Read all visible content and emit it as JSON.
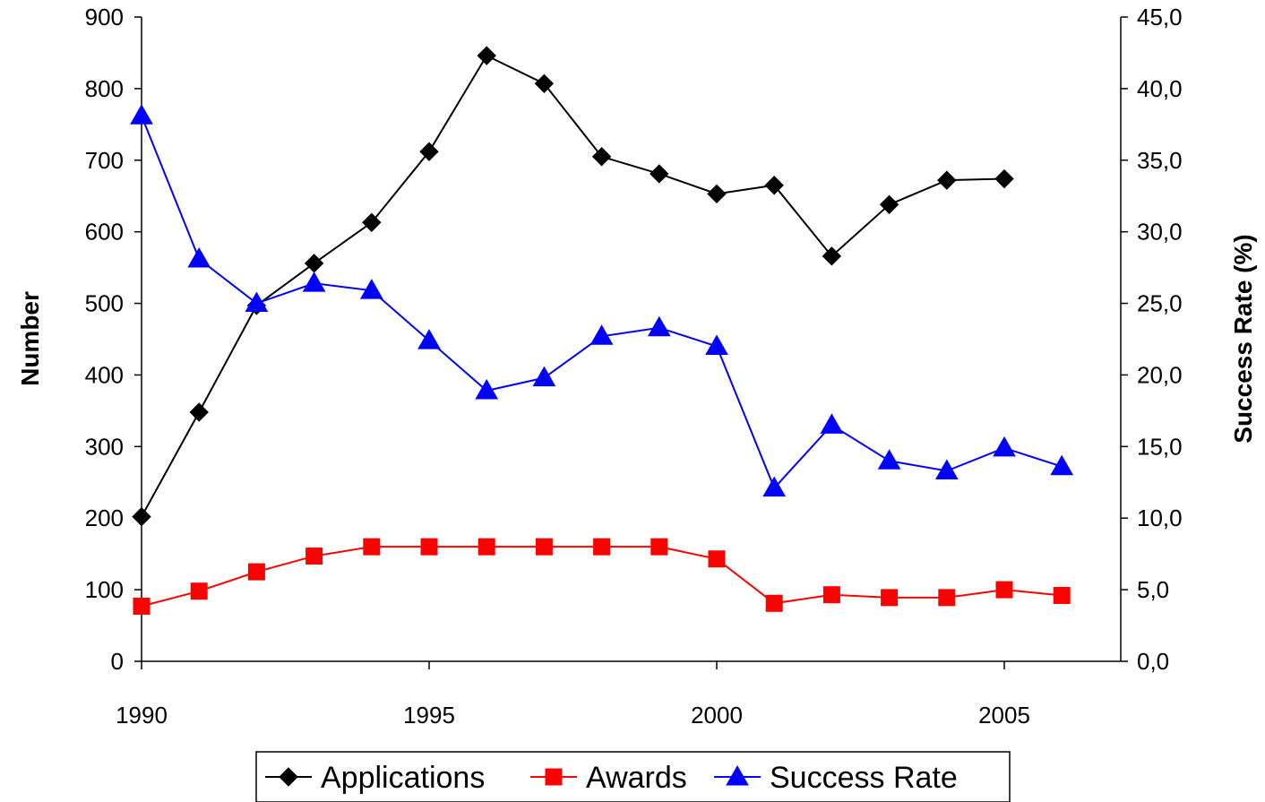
{
  "chart_data": {
    "type": "line",
    "x": [
      1990,
      1991,
      1992,
      1993,
      1994,
      1995,
      1996,
      1997,
      1998,
      1999,
      2000,
      2001,
      2002,
      2003,
      2004,
      2005,
      2006
    ],
    "x_ticks": [
      "1990",
      "1995",
      "2000",
      "2005"
    ],
    "xlim": [
      1990,
      2007
    ],
    "ylabel": "Number",
    "ylim": [
      0,
      900
    ],
    "y_ticks": [
      "0",
      "100",
      "200",
      "300",
      "400",
      "500",
      "600",
      "700",
      "800",
      "900"
    ],
    "y2label": "Success Rate (%)",
    "y2lim": [
      0,
      45
    ],
    "y2_ticks": [
      "0,0",
      "5,0",
      "10,0",
      "15,0",
      "20,0",
      "25,0",
      "30,0",
      "35,0",
      "40,0",
      "45,0"
    ],
    "grid": false,
    "legend_position": "bottom",
    "series": [
      {
        "name": "Applications",
        "axis": "left",
        "color": "#000000",
        "marker": "diamond",
        "values": [
          202,
          348,
          497,
          556,
          613,
          712,
          846,
          807,
          705,
          681,
          653,
          665,
          566,
          638,
          672,
          674,
          null
        ]
      },
      {
        "name": "Awards",
        "axis": "left",
        "color": "#ff0000",
        "marker": "square",
        "values": [
          77,
          98,
          125,
          147,
          160,
          160,
          160,
          160,
          160,
          160,
          143,
          81,
          93,
          89,
          89,
          100,
          92
        ]
      },
      {
        "name": "Success Rate",
        "axis": "right",
        "color": "#0000ff",
        "marker": "triangle",
        "values": [
          38.1,
          28.1,
          25.0,
          26.4,
          25.9,
          22.4,
          18.9,
          19.8,
          22.7,
          23.3,
          22.0,
          12.1,
          16.5,
          14.0,
          13.3,
          14.9,
          13.6
        ]
      }
    ]
  }
}
